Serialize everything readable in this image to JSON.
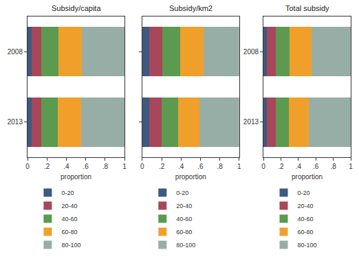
{
  "chart_data": [
    {
      "type": "bar",
      "orientation": "horizontal",
      "stacked": true,
      "title": "Subsidy/capita",
      "x_label": "proportion",
      "categories": [
        "2008",
        "2013"
      ],
      "series": [
        {
          "name": "0-20",
          "color": "#3d5a80",
          "values": [
            0.04,
            0.04
          ]
        },
        {
          "name": "20-40",
          "color": "#a8465a",
          "values": [
            0.1,
            0.1
          ]
        },
        {
          "name": "40-60",
          "color": "#5b9a4f",
          "values": [
            0.18,
            0.17
          ]
        },
        {
          "name": "60-80",
          "color": "#f0a02a",
          "values": [
            0.24,
            0.24
          ]
        },
        {
          "name": "80-100",
          "color": "#97aea7",
          "values": [
            0.44,
            0.45
          ]
        }
      ],
      "xlim": [
        0,
        1
      ],
      "xticks": [
        0,
        {
          "value": 0.2,
          "label": ".2"
        },
        {
          "value": 0.4,
          "label": ".4"
        },
        {
          "value": 0.6,
          "label": ".6"
        },
        {
          "value": 0.8,
          "label": ".8"
        },
        1
      ],
      "legend": "bottom"
    },
    {
      "type": "bar",
      "orientation": "horizontal",
      "stacked": true,
      "title": "Subsidy/km2",
      "x_label": "proportion",
      "categories": [
        "2008",
        "2013"
      ],
      "series": [
        {
          "name": "0-20",
          "color": "#3d5a80",
          "values": [
            0.07,
            0.07
          ]
        },
        {
          "name": "20-40",
          "color": "#a8465a",
          "values": [
            0.14,
            0.13
          ]
        },
        {
          "name": "40-60",
          "color": "#5b9a4f",
          "values": [
            0.18,
            0.17
          ]
        },
        {
          "name": "60-80",
          "color": "#f0a02a",
          "values": [
            0.24,
            0.22
          ]
        },
        {
          "name": "80-100",
          "color": "#97aea7",
          "values": [
            0.37,
            0.41
          ]
        }
      ],
      "xlim": [
        0,
        1
      ],
      "xticks": [
        0,
        {
          "value": 0.2,
          "label": ".2"
        },
        {
          "value": 0.4,
          "label": ".4"
        },
        {
          "value": 0.6,
          "label": ".6"
        },
        {
          "value": 0.8,
          "label": ".8"
        },
        1
      ],
      "legend": "bottom",
      "tick_labels": "x"
    },
    {
      "type": "bar",
      "orientation": "horizontal",
      "stacked": true,
      "title": "Total subsidy",
      "x_label": "proportion",
      "categories": [
        "2008",
        "2013"
      ],
      "series": [
        {
          "name": "0-20",
          "color": "#3d5a80",
          "values": [
            0.04,
            0.04
          ]
        },
        {
          "name": "20-40",
          "color": "#a8465a",
          "values": [
            0.1,
            0.1
          ]
        },
        {
          "name": "40-60",
          "color": "#5b9a4f",
          "values": [
            0.16,
            0.15
          ]
        },
        {
          "name": "60-80",
          "color": "#f0a02a",
          "values": [
            0.25,
            0.23
          ]
        },
        {
          "name": "80-100",
          "color": "#97aea7",
          "values": [
            0.45,
            0.48
          ]
        }
      ],
      "xlim": [
        0,
        1
      ],
      "xticks": [
        0,
        {
          "value": 0.2,
          "label": ".2"
        },
        {
          "value": 0.4,
          "label": ".4"
        },
        {
          "value": 0.6,
          "label": ".6"
        },
        {
          "value": 0.8,
          "label": ".8"
        },
        1
      ],
      "legend": "bottom"
    }
  ]
}
